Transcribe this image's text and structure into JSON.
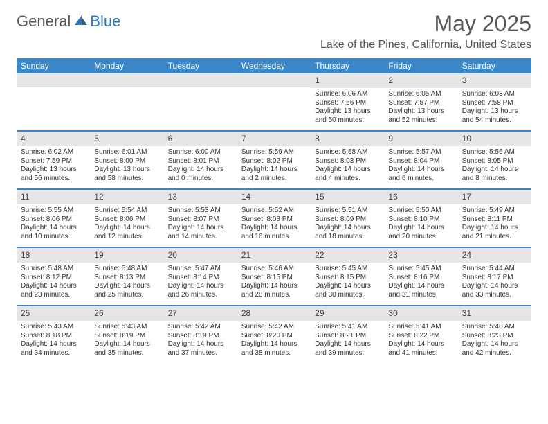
{
  "brand": {
    "part1": "General",
    "part2": "Blue"
  },
  "month_title": "May 2025",
  "location": "Lake of the Pines, California, United States",
  "colors": {
    "header_bg": "#3b87c8",
    "daynum_bg": "#e6e6e6",
    "rule": "#3b87c8",
    "text": "#333333",
    "title": "#555555"
  },
  "weekdays": [
    "Sunday",
    "Monday",
    "Tuesday",
    "Wednesday",
    "Thursday",
    "Friday",
    "Saturday"
  ],
  "weeks": [
    [
      {
        "empty": true
      },
      {
        "empty": true
      },
      {
        "empty": true
      },
      {
        "empty": true
      },
      {
        "num": "1",
        "sunrise": "Sunrise: 6:06 AM",
        "sunset": "Sunset: 7:56 PM",
        "day1": "Daylight: 13 hours",
        "day2": "and 50 minutes."
      },
      {
        "num": "2",
        "sunrise": "Sunrise: 6:05 AM",
        "sunset": "Sunset: 7:57 PM",
        "day1": "Daylight: 13 hours",
        "day2": "and 52 minutes."
      },
      {
        "num": "3",
        "sunrise": "Sunrise: 6:03 AM",
        "sunset": "Sunset: 7:58 PM",
        "day1": "Daylight: 13 hours",
        "day2": "and 54 minutes."
      }
    ],
    [
      {
        "num": "4",
        "sunrise": "Sunrise: 6:02 AM",
        "sunset": "Sunset: 7:59 PM",
        "day1": "Daylight: 13 hours",
        "day2": "and 56 minutes."
      },
      {
        "num": "5",
        "sunrise": "Sunrise: 6:01 AM",
        "sunset": "Sunset: 8:00 PM",
        "day1": "Daylight: 13 hours",
        "day2": "and 58 minutes."
      },
      {
        "num": "6",
        "sunrise": "Sunrise: 6:00 AM",
        "sunset": "Sunset: 8:01 PM",
        "day1": "Daylight: 14 hours",
        "day2": "and 0 minutes."
      },
      {
        "num": "7",
        "sunrise": "Sunrise: 5:59 AM",
        "sunset": "Sunset: 8:02 PM",
        "day1": "Daylight: 14 hours",
        "day2": "and 2 minutes."
      },
      {
        "num": "8",
        "sunrise": "Sunrise: 5:58 AM",
        "sunset": "Sunset: 8:03 PM",
        "day1": "Daylight: 14 hours",
        "day2": "and 4 minutes."
      },
      {
        "num": "9",
        "sunrise": "Sunrise: 5:57 AM",
        "sunset": "Sunset: 8:04 PM",
        "day1": "Daylight: 14 hours",
        "day2": "and 6 minutes."
      },
      {
        "num": "10",
        "sunrise": "Sunrise: 5:56 AM",
        "sunset": "Sunset: 8:05 PM",
        "day1": "Daylight: 14 hours",
        "day2": "and 8 minutes."
      }
    ],
    [
      {
        "num": "11",
        "sunrise": "Sunrise: 5:55 AM",
        "sunset": "Sunset: 8:06 PM",
        "day1": "Daylight: 14 hours",
        "day2": "and 10 minutes."
      },
      {
        "num": "12",
        "sunrise": "Sunrise: 5:54 AM",
        "sunset": "Sunset: 8:06 PM",
        "day1": "Daylight: 14 hours",
        "day2": "and 12 minutes."
      },
      {
        "num": "13",
        "sunrise": "Sunrise: 5:53 AM",
        "sunset": "Sunset: 8:07 PM",
        "day1": "Daylight: 14 hours",
        "day2": "and 14 minutes."
      },
      {
        "num": "14",
        "sunrise": "Sunrise: 5:52 AM",
        "sunset": "Sunset: 8:08 PM",
        "day1": "Daylight: 14 hours",
        "day2": "and 16 minutes."
      },
      {
        "num": "15",
        "sunrise": "Sunrise: 5:51 AM",
        "sunset": "Sunset: 8:09 PM",
        "day1": "Daylight: 14 hours",
        "day2": "and 18 minutes."
      },
      {
        "num": "16",
        "sunrise": "Sunrise: 5:50 AM",
        "sunset": "Sunset: 8:10 PM",
        "day1": "Daylight: 14 hours",
        "day2": "and 20 minutes."
      },
      {
        "num": "17",
        "sunrise": "Sunrise: 5:49 AM",
        "sunset": "Sunset: 8:11 PM",
        "day1": "Daylight: 14 hours",
        "day2": "and 21 minutes."
      }
    ],
    [
      {
        "num": "18",
        "sunrise": "Sunrise: 5:48 AM",
        "sunset": "Sunset: 8:12 PM",
        "day1": "Daylight: 14 hours",
        "day2": "and 23 minutes."
      },
      {
        "num": "19",
        "sunrise": "Sunrise: 5:48 AM",
        "sunset": "Sunset: 8:13 PM",
        "day1": "Daylight: 14 hours",
        "day2": "and 25 minutes."
      },
      {
        "num": "20",
        "sunrise": "Sunrise: 5:47 AM",
        "sunset": "Sunset: 8:14 PM",
        "day1": "Daylight: 14 hours",
        "day2": "and 26 minutes."
      },
      {
        "num": "21",
        "sunrise": "Sunrise: 5:46 AM",
        "sunset": "Sunset: 8:15 PM",
        "day1": "Daylight: 14 hours",
        "day2": "and 28 minutes."
      },
      {
        "num": "22",
        "sunrise": "Sunrise: 5:45 AM",
        "sunset": "Sunset: 8:15 PM",
        "day1": "Daylight: 14 hours",
        "day2": "and 30 minutes."
      },
      {
        "num": "23",
        "sunrise": "Sunrise: 5:45 AM",
        "sunset": "Sunset: 8:16 PM",
        "day1": "Daylight: 14 hours",
        "day2": "and 31 minutes."
      },
      {
        "num": "24",
        "sunrise": "Sunrise: 5:44 AM",
        "sunset": "Sunset: 8:17 PM",
        "day1": "Daylight: 14 hours",
        "day2": "and 33 minutes."
      }
    ],
    [
      {
        "num": "25",
        "sunrise": "Sunrise: 5:43 AM",
        "sunset": "Sunset: 8:18 PM",
        "day1": "Daylight: 14 hours",
        "day2": "and 34 minutes."
      },
      {
        "num": "26",
        "sunrise": "Sunrise: 5:43 AM",
        "sunset": "Sunset: 8:19 PM",
        "day1": "Daylight: 14 hours",
        "day2": "and 35 minutes."
      },
      {
        "num": "27",
        "sunrise": "Sunrise: 5:42 AM",
        "sunset": "Sunset: 8:19 PM",
        "day1": "Daylight: 14 hours",
        "day2": "and 37 minutes."
      },
      {
        "num": "28",
        "sunrise": "Sunrise: 5:42 AM",
        "sunset": "Sunset: 8:20 PM",
        "day1": "Daylight: 14 hours",
        "day2": "and 38 minutes."
      },
      {
        "num": "29",
        "sunrise": "Sunrise: 5:41 AM",
        "sunset": "Sunset: 8:21 PM",
        "day1": "Daylight: 14 hours",
        "day2": "and 39 minutes."
      },
      {
        "num": "30",
        "sunrise": "Sunrise: 5:41 AM",
        "sunset": "Sunset: 8:22 PM",
        "day1": "Daylight: 14 hours",
        "day2": "and 41 minutes."
      },
      {
        "num": "31",
        "sunrise": "Sunrise: 5:40 AM",
        "sunset": "Sunset: 8:23 PM",
        "day1": "Daylight: 14 hours",
        "day2": "and 42 minutes."
      }
    ]
  ]
}
